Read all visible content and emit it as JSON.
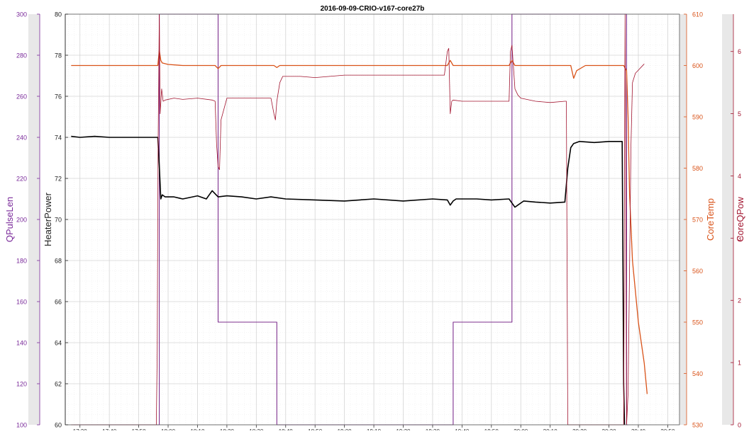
{
  "chart_data": {
    "type": "line",
    "title": "2016-09-09-CRIO-v167-core27b",
    "x_ticks": [
      "17:30",
      "17:40",
      "17:50",
      "18:00",
      "18:10",
      "18:20",
      "18:30",
      "18:40",
      "18:50",
      "19:00",
      "19:10",
      "19:20",
      "19:30",
      "19:40",
      "19:50",
      "20:00",
      "20:10",
      "20:20",
      "20:30",
      "20:40",
      "20:50"
    ],
    "axes": {
      "qpulselen": {
        "label": "QPulseLen",
        "range": [
          100,
          300
        ],
        "ticks": [
          100,
          120,
          140,
          160,
          180,
          200,
          220,
          240,
          260,
          280,
          300
        ],
        "color": "#7a2a9a"
      },
      "heaterpower": {
        "label": "HeaterPower",
        "range": [
          60,
          80
        ],
        "ticks": [
          60,
          62,
          64,
          66,
          68,
          70,
          72,
          74,
          76,
          78,
          80
        ],
        "color": "#222222"
      },
      "coretemp": {
        "label": "CoreTemp",
        "range": [
          530,
          610
        ],
        "ticks": [
          530,
          540,
          550,
          560,
          570,
          580,
          590,
          600,
          610
        ],
        "color": "#d95319"
      },
      "coreqpow": {
        "label": "CoreQPow",
        "range": [
          0,
          6.6
        ],
        "ticks": [
          0,
          1,
          2,
          3,
          4,
          5,
          6
        ],
        "color": "#a2142f"
      }
    },
    "x_range_minutes": [
      1045,
      1254
    ],
    "series": [
      {
        "axis": "qpulselen",
        "color": "#7e2f8e",
        "x": [
          1048,
          1077,
          1077,
          1097,
          1097,
          1117,
          1117,
          1177,
          1177,
          1197,
          1197,
          1236,
          1236,
          1236.5
        ],
        "y": [
          100,
          100,
          300,
          300,
          150,
          150,
          100,
          100,
          150,
          150,
          300,
          300,
          100,
          100
        ]
      },
      {
        "axis": "heaterpower",
        "color": "#000000",
        "x": [
          1047,
          1050,
          1055,
          1060,
          1065,
          1070,
          1074,
          1076.5,
          1077,
          1077.5,
          1078,
          1079,
          1082,
          1085,
          1090,
          1093,
          1094,
          1095,
          1097,
          1100,
          1105,
          1110,
          1115,
          1120,
          1130,
          1140,
          1150,
          1160,
          1170,
          1175,
          1176,
          1177,
          1178,
          1180,
          1185,
          1190,
          1196,
          1197,
          1198,
          1199,
          1201,
          1205,
          1210,
          1215,
          1216,
          1217,
          1218,
          1220,
          1225,
          1230,
          1233,
          1234.5,
          1235,
          1235.3
        ],
        "y": [
          74.05,
          74.0,
          74.05,
          74.0,
          74.0,
          74.0,
          74.0,
          74.0,
          72.6,
          71.0,
          71.2,
          71.1,
          71.1,
          71.0,
          71.15,
          71.0,
          71.2,
          71.4,
          71.1,
          71.15,
          71.1,
          71.0,
          71.1,
          71.0,
          70.95,
          70.9,
          71.0,
          70.9,
          71.0,
          70.95,
          70.7,
          70.9,
          71.0,
          71.0,
          71.0,
          70.95,
          71.0,
          70.8,
          70.6,
          70.7,
          70.9,
          70.85,
          70.8,
          70.85,
          72.5,
          73.5,
          73.7,
          73.8,
          73.75,
          73.8,
          73.8,
          73.8,
          62.0,
          60.0
        ]
      },
      {
        "axis": "coretemp",
        "color": "#d95319",
        "x": [
          1047,
          1060,
          1070,
          1076.5,
          1077,
          1077.5,
          1078,
          1080,
          1085,
          1090,
          1096,
          1097,
          1098,
          1100,
          1110,
          1116,
          1117,
          1118,
          1130,
          1150,
          1170,
          1175,
          1176,
          1177,
          1180,
          1190,
          1196,
          1197,
          1198,
          1200,
          1210,
          1217,
          1218,
          1219,
          1222,
          1225,
          1230,
          1235,
          1236,
          1236.5,
          1237,
          1238,
          1240,
          1242,
          1243
        ],
        "y": [
          600,
          600,
          600,
          600,
          603,
          601,
          600.5,
          600.2,
          600,
          600,
          600,
          599.4,
          600,
          600,
          600,
          600,
          599.6,
          600,
          600,
          600,
          600,
          600,
          601,
          600,
          600,
          600,
          600,
          601,
          600,
          600,
          600,
          600,
          597.5,
          599,
          600,
          600,
          600,
          600,
          599,
          590,
          575,
          562,
          550,
          542,
          536
        ]
      },
      {
        "axis": "coreqpow",
        "color": "#a2142f",
        "x": [
          1047,
          1076,
          1076.3,
          1076.6,
          1077,
          1077.3,
          1077.8,
          1078.3,
          1079,
          1082,
          1085,
          1090,
          1095,
          1096,
          1096.5,
          1097,
          1097.5,
          1098,
          1100,
          1105,
          1110,
          1115,
          1116,
          1116.5,
          1117,
          1118,
          1119,
          1125,
          1130,
          1140,
          1150,
          1160,
          1170,
          1174,
          1175,
          1175.5,
          1176,
          1176.5,
          1177,
          1180,
          1185,
          1190,
          1195,
          1196,
          1196.5,
          1197,
          1198,
          1199,
          1200,
          1205,
          1210,
          1215,
          1215.5,
          1216,
          1216.5,
          1217,
          1225,
          1230,
          1234,
          1235,
          1235.5,
          1236,
          1236.5,
          1237,
          1237.5,
          1238,
          1239,
          1240,
          1241,
          1242
        ],
        "y": [
          0,
          0,
          1.2,
          4.5,
          6.6,
          5.0,
          5.4,
          5.2,
          5.22,
          5.25,
          5.23,
          5.25,
          5.22,
          5.2,
          4.5,
          4.15,
          4.1,
          4.9,
          5.25,
          5.25,
          5.25,
          5.25,
          5.0,
          4.9,
          5.2,
          5.5,
          5.6,
          5.6,
          5.58,
          5.62,
          5.62,
          5.62,
          5.62,
          5.62,
          6.0,
          6.05,
          5.0,
          5.2,
          5.22,
          5.2,
          5.2,
          5.2,
          5.2,
          5.2,
          6.0,
          6.1,
          5.4,
          5.3,
          5.25,
          5.2,
          5.18,
          5.2,
          5.2,
          0,
          0,
          0,
          0,
          0,
          0,
          0,
          6.6,
          0,
          0.5,
          2.5,
          4.5,
          5.5,
          5.65,
          5.7,
          5.75,
          5.8
        ]
      }
    ]
  }
}
